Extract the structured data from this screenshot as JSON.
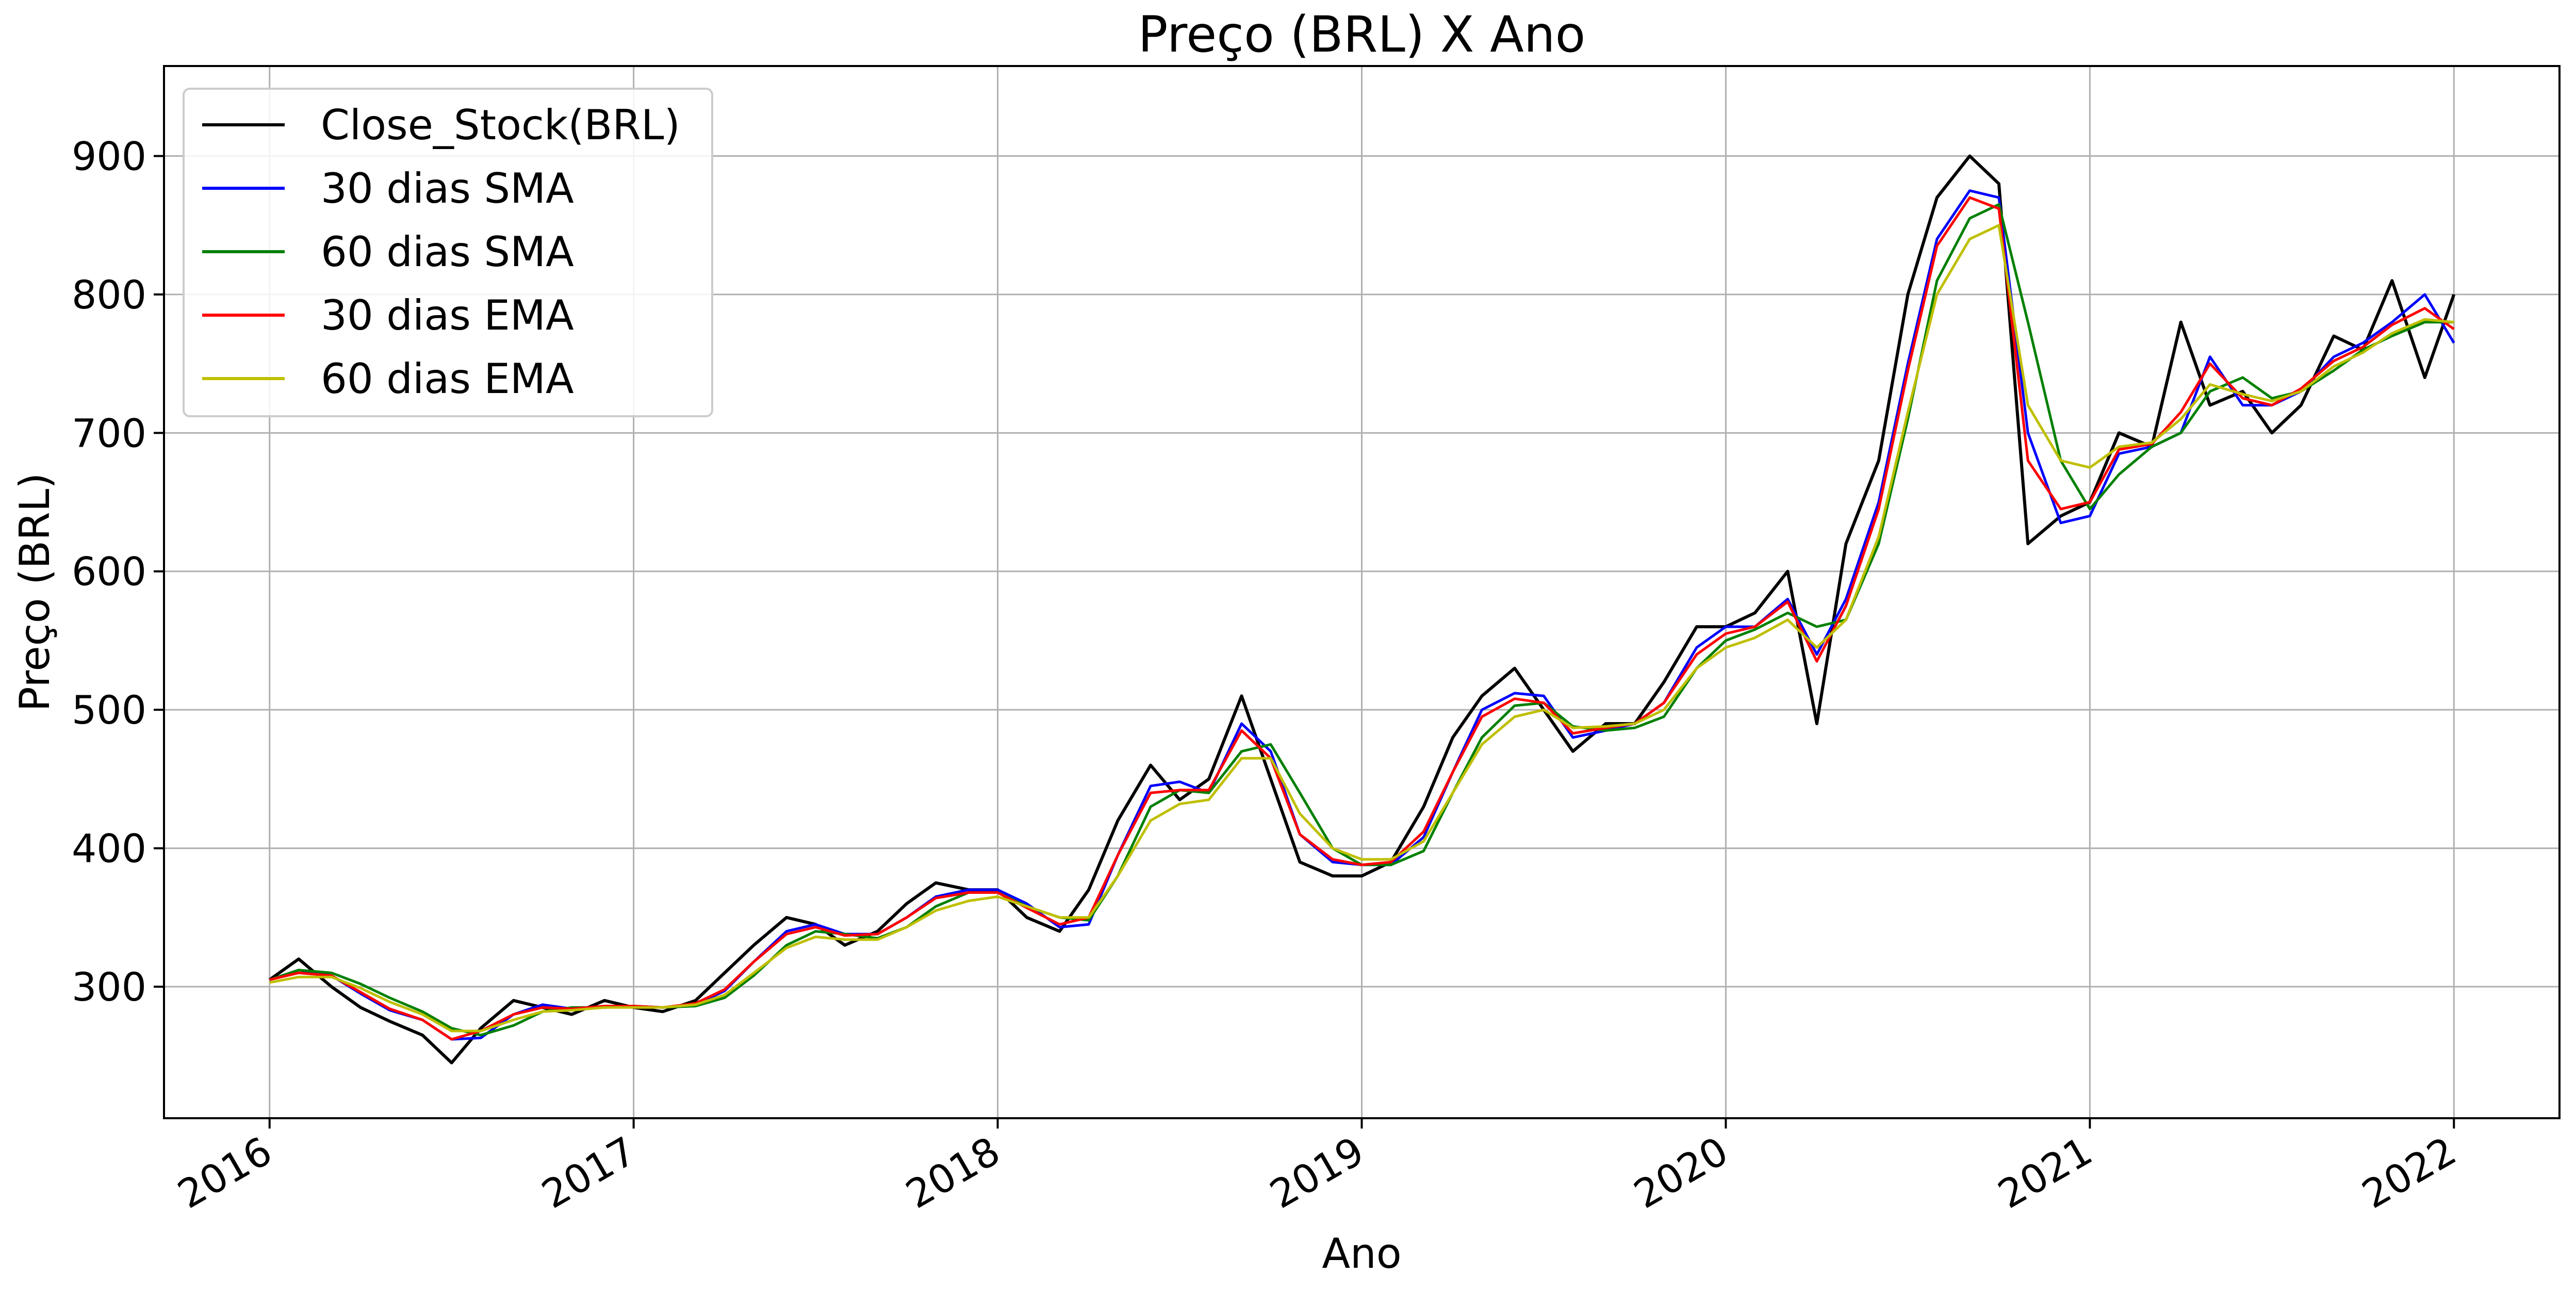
{
  "chart_data": {
    "type": "line",
    "title": "Preço (BRL) X Ano",
    "xlabel": "Ano",
    "ylabel": "Preço (BRL)",
    "x_ticks": [
      "2016",
      "2017",
      "2018",
      "2019",
      "2020",
      "2021",
      "2022"
    ],
    "y_ticks": [
      300,
      400,
      500,
      600,
      700,
      800,
      900
    ],
    "xlim": [
      2015.71,
      2022.29
    ],
    "ylim": [
      205,
      965
    ],
    "grid": true,
    "legend_position": "top-left",
    "x": [
      2016.0,
      2016.08,
      2016.17,
      2016.25,
      2016.33,
      2016.42,
      2016.5,
      2016.58,
      2016.67,
      2016.75,
      2016.83,
      2016.92,
      2017.0,
      2017.08,
      2017.17,
      2017.25,
      2017.33,
      2017.42,
      2017.5,
      2017.58,
      2017.67,
      2017.75,
      2017.83,
      2017.92,
      2018.0,
      2018.08,
      2018.17,
      2018.25,
      2018.33,
      2018.42,
      2018.5,
      2018.58,
      2018.67,
      2018.75,
      2018.83,
      2018.92,
      2019.0,
      2019.08,
      2019.17,
      2019.25,
      2019.33,
      2019.42,
      2019.5,
      2019.58,
      2019.67,
      2019.75,
      2019.83,
      2019.92,
      2020.0,
      2020.08,
      2020.17,
      2020.25,
      2020.33,
      2020.42,
      2020.5,
      2020.58,
      2020.67,
      2020.75,
      2020.83,
      2020.92,
      2021.0,
      2021.08,
      2021.17,
      2021.25,
      2021.33,
      2021.42,
      2021.5,
      2021.58,
      2021.67,
      2021.75,
      2021.83,
      2021.92,
      2022.0
    ],
    "series": [
      {
        "name": "Close_Stock(BRL)",
        "color": "#000000",
        "values": [
          305,
          320,
          300,
          285,
          275,
          265,
          245,
          270,
          290,
          285,
          280,
          290,
          285,
          282,
          290,
          310,
          330,
          350,
          345,
          330,
          340,
          360,
          375,
          370,
          370,
          350,
          340,
          370,
          420,
          460,
          435,
          450,
          510,
          450,
          390,
          380,
          380,
          390,
          430,
          480,
          510,
          530,
          500,
          470,
          490,
          490,
          520,
          560,
          560,
          570,
          600,
          490,
          620,
          680,
          800,
          870,
          900,
          880,
          620,
          640,
          650,
          700,
          690,
          780,
          720,
          730,
          700,
          720,
          770,
          760,
          810,
          740,
          800
        ]
      },
      {
        "name": "30 dias SMA",
        "color": "#0000ff",
        "values": [
          305,
          312,
          308,
          295,
          283,
          276,
          262,
          263,
          280,
          287,
          284,
          285,
          286,
          285,
          287,
          297,
          318,
          340,
          345,
          338,
          338,
          350,
          365,
          370,
          370,
          360,
          343,
          345,
          395,
          445,
          448,
          440,
          490,
          470,
          410,
          390,
          388,
          388,
          408,
          455,
          500,
          512,
          510,
          480,
          485,
          490,
          505,
          545,
          560,
          560,
          580,
          540,
          580,
          650,
          750,
          840,
          875,
          870,
          700,
          635,
          640,
          685,
          690,
          700,
          755,
          720,
          720,
          730,
          755,
          765,
          780,
          800,
          765
        ]
      },
      {
        "name": "60 dias SMA",
        "color": "#008000",
        "values": [
          305,
          312,
          310,
          302,
          292,
          282,
          270,
          265,
          272,
          282,
          285,
          285,
          286,
          285,
          286,
          292,
          308,
          330,
          340,
          338,
          335,
          343,
          358,
          368,
          368,
          358,
          350,
          348,
          380,
          430,
          442,
          440,
          470,
          475,
          440,
          400,
          388,
          388,
          398,
          440,
          480,
          503,
          505,
          488,
          485,
          487,
          495,
          530,
          550,
          558,
          570,
          560,
          565,
          620,
          710,
          810,
          855,
          865,
          780,
          680,
          645,
          670,
          690,
          700,
          730,
          740,
          725,
          730,
          745,
          760,
          770,
          780,
          780
        ]
      },
      {
        "name": "30 dias EMA",
        "color": "#ff0000",
        "values": [
          305,
          310,
          308,
          296,
          284,
          276,
          262,
          268,
          280,
          285,
          284,
          286,
          286,
          285,
          288,
          298,
          318,
          338,
          343,
          337,
          338,
          350,
          364,
          368,
          368,
          357,
          345,
          350,
          395,
          440,
          442,
          442,
          485,
          465,
          410,
          392,
          388,
          390,
          412,
          455,
          495,
          508,
          505,
          483,
          487,
          490,
          505,
          540,
          555,
          560,
          578,
          535,
          575,
          645,
          745,
          835,
          870,
          862,
          680,
          645,
          650,
          688,
          692,
          715,
          750,
          725,
          720,
          732,
          752,
          762,
          778,
          790,
          775
        ]
      },
      {
        "name": "60 dias EMA",
        "color": "#bfbf00",
        "values": [
          303,
          307,
          307,
          299,
          289,
          280,
          268,
          268,
          276,
          282,
          283,
          285,
          285,
          285,
          287,
          294,
          310,
          328,
          336,
          334,
          334,
          343,
          355,
          362,
          365,
          358,
          350,
          350,
          380,
          420,
          432,
          435,
          465,
          465,
          425,
          400,
          392,
          392,
          405,
          440,
          475,
          495,
          500,
          487,
          488,
          490,
          500,
          530,
          545,
          552,
          565,
          545,
          565,
          625,
          715,
          800,
          840,
          850,
          720,
          680,
          675,
          690,
          693,
          710,
          735,
          728,
          723,
          730,
          748,
          758,
          772,
          782,
          780
        ]
      }
    ]
  }
}
